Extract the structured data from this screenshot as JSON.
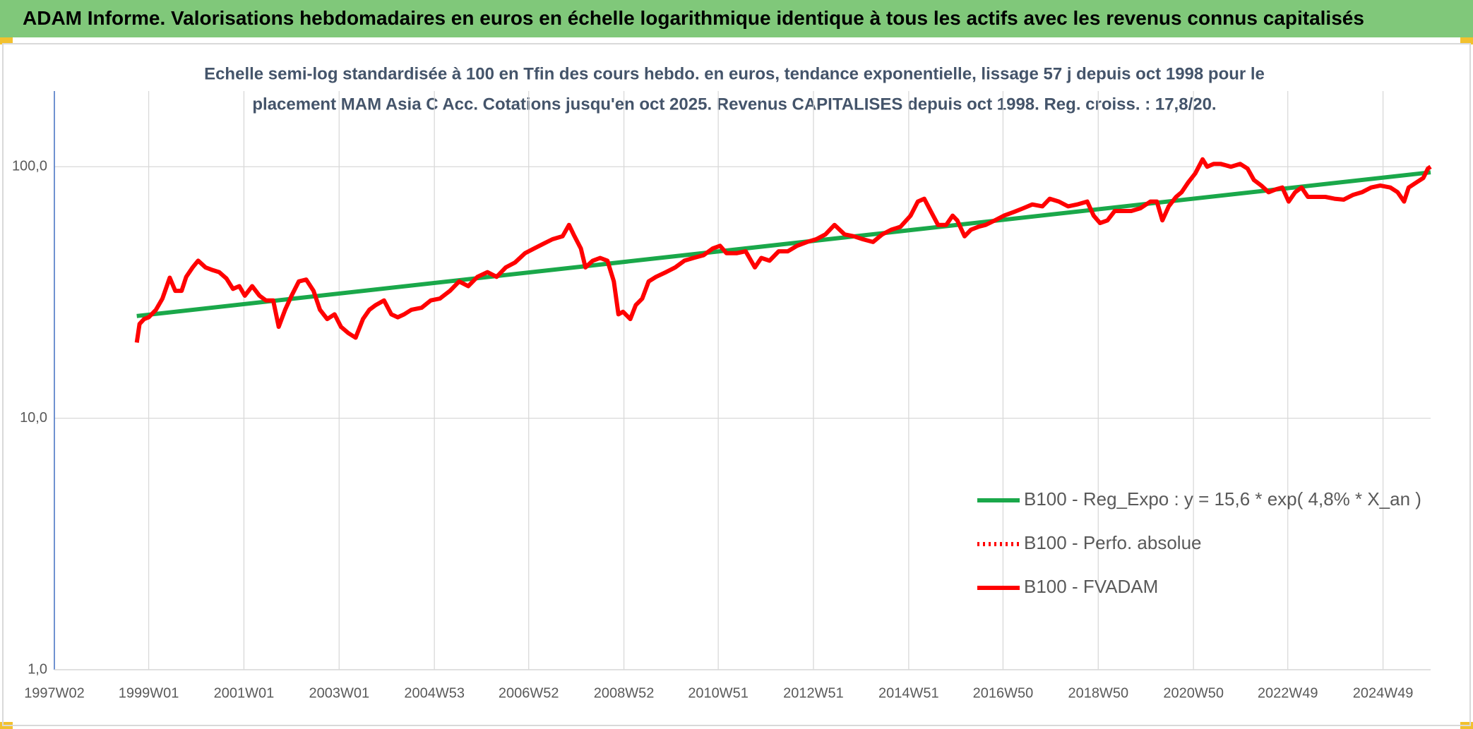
{
  "chart_data": {
    "type": "line",
    "title": "ADAM Informe. Valorisations hebdomadaires en euros en échelle logarithmique identique à tous les actifs avec les revenus connus capitalisés",
    "subtitle": [
      "Echelle semi-log standardisée à 100 en Tfin des cours hebdo. en euros, tendance exponentielle, lissage 57 j depuis oct 1998 pour le",
      "placement MAM Asia C Acc. Cotations jusqu'en oct 2025. Revenus CAPITALISES depuis oct 1998. Reg. croiss. : 17,8/20."
    ],
    "log_scale": true,
    "grid": true,
    "legend": "bottom-right",
    "ylim": [
      1,
      200
    ],
    "yticks": [
      {
        "value": 1,
        "label": "1,0"
      },
      {
        "value": 10,
        "label": "10,0"
      },
      {
        "value": 100,
        "label": "100,0"
      }
    ],
    "xlim": [
      "1997W02",
      "2025W49"
    ],
    "xticks": [
      "1997W02",
      "1999W01",
      "2001W01",
      "2003W01",
      "2004W53",
      "2006W52",
      "2008W52",
      "2010W51",
      "2012W51",
      "2014W51",
      "2016W50",
      "2018W50",
      "2020W50",
      "2022W49",
      "2024W49"
    ],
    "series": [
      {
        "name": "B100 - Reg_Expo : y = 15,6 * exp( 4,8% *  X_an )",
        "color": "#1aa84a",
        "style": "solid",
        "x": [
          "1998W40",
          "2025W49"
        ],
        "values": [
          25.5,
          95
        ]
      },
      {
        "name": "B100 - Perfo. absolue",
        "color": "#ff0000",
        "style": "dotted",
        "x": [],
        "values": []
      },
      {
        "name": "B100 - FVADAM",
        "color": "#ff0000",
        "style": "solid",
        "x": [
          "1998W40",
          "1998W43",
          "1998W48",
          "1999W01",
          "1999W09",
          "1999W16",
          "1999W24",
          "1999W30",
          "1999W37",
          "1999W42",
          "1999W49",
          "2000W03",
          "2000W11",
          "2000W19",
          "2000W26",
          "2000W34",
          "2000W41",
          "2000W48",
          "2001W02",
          "2001W10",
          "2001W18",
          "2001W25",
          "2001W33",
          "2001W39",
          "2001W46",
          "2002W01",
          "2002W09",
          "2002W17",
          "2002W25",
          "2002W32",
          "2002W40",
          "2002W48",
          "2003W03",
          "2003W11",
          "2003W19",
          "2003W27",
          "2003W34",
          "2003W41",
          "2003W50",
          "2004W06",
          "2004W13",
          "2004W20",
          "2004W28",
          "2004W39",
          "2004W49",
          "2005W07",
          "2005W18",
          "2005W28",
          "2005W38",
          "2005W48",
          "2006W07",
          "2006W17",
          "2006W27",
          "2006W37",
          "2006W48",
          "2007W06",
          "2007W16",
          "2007W26",
          "2007W37",
          "2007W44",
          "2007W49",
          "2008W05",
          "2008W10",
          "2008W18",
          "2008W26",
          "2008W34",
          "2008W41",
          "2008W46",
          "2008W51",
          "2009W07",
          "2009W13",
          "2009W20",
          "2009W27",
          "2009W35",
          "2009W46",
          "2010W04",
          "2010W14",
          "2010W24",
          "2010W35",
          "2010W45",
          "2011W01",
          "2011W08",
          "2011W19",
          "2011W29",
          "2011W39",
          "2011W46",
          "2012W03",
          "2012W13",
          "2012W23",
          "2012W33",
          "2012W44",
          "2013W02",
          "2013W12",
          "2013W22",
          "2013W33",
          "2013W43",
          "2014W01",
          "2014W12",
          "2014W22",
          "2014W32",
          "2014W42",
          "2015W01",
          "2015W09",
          "2015W16",
          "2015W23",
          "2015W31",
          "2015W40",
          "2015W47",
          "2015W52",
          "2016W08",
          "2016W15",
          "2016W23",
          "2016W31",
          "2016W41",
          "2016W51",
          "2017W10",
          "2017W20",
          "2017W30",
          "2017W41",
          "2017W49",
          "2018W07",
          "2018W17",
          "2018W27",
          "2018W38",
          "2018W45",
          "2018W52",
          "2019W08",
          "2019W16",
          "2019W24",
          "2019W34",
          "2019W44",
          "2020W03",
          "2020W10",
          "2020W16",
          "2020W23",
          "2020W31",
          "2020W37",
          "2020W44",
          "2020W52",
          "2021W08",
          "2021W13",
          "2021W20",
          "2021W28",
          "2021W39",
          "2021W49",
          "2022W05",
          "2022W12",
          "2022W20",
          "2022W28",
          "2022W36",
          "2022W43",
          "2022W50",
          "2023W05",
          "2023W12",
          "2023W19",
          "2023W27",
          "2023W38",
          "2023W48",
          "2024W06",
          "2024W16",
          "2024W26",
          "2024W36",
          "2024W46",
          "2025W05",
          "2025W13",
          "2025W20",
          "2025W25",
          "2025W33",
          "2025W41",
          "2025W46",
          "2025W49"
        ],
        "values": [
          20.0,
          23.7,
          24.8,
          25.2,
          27.0,
          29.9,
          36.2,
          32.1,
          32.1,
          36.5,
          39.8,
          42.3,
          39.8,
          38.8,
          38.1,
          35.9,
          32.7,
          33.5,
          30.7,
          33.5,
          30.7,
          29.4,
          29.4,
          23.1,
          27.0,
          30.7,
          35.0,
          35.6,
          32.1,
          27.0,
          24.8,
          25.9,
          23.1,
          21.8,
          20.9,
          24.8,
          27.0,
          28.2,
          29.4,
          25.9,
          25.2,
          25.9,
          27.0,
          27.5,
          29.4,
          29.9,
          32.1,
          35.0,
          33.5,
          36.5,
          38.1,
          36.5,
          39.8,
          41.6,
          45.3,
          47.3,
          49.4,
          51.5,
          52.9,
          58.7,
          53.8,
          47.3,
          39.8,
          42.3,
          43.4,
          42.3,
          35.0,
          25.9,
          26.5,
          24.8,
          28.2,
          29.9,
          35.0,
          36.5,
          38.1,
          39.8,
          42.3,
          43.4,
          44.5,
          47.3,
          48.5,
          45.3,
          45.3,
          46.1,
          39.8,
          43.4,
          42.3,
          46.1,
          46.1,
          48.5,
          50.2,
          51.5,
          53.8,
          58.7,
          53.8,
          52.9,
          51.5,
          50.2,
          53.8,
          56.2,
          57.7,
          63.9,
          72.7,
          74.6,
          66.7,
          58.7,
          58.7,
          63.9,
          61.2,
          52.9,
          56.2,
          57.7,
          58.7,
          61.2,
          63.9,
          66.1,
          68.4,
          70.8,
          69.6,
          74.6,
          72.7,
          69.6,
          70.8,
          72.7,
          63.9,
          59.7,
          61.2,
          66.7,
          66.7,
          66.7,
          68.4,
          72.7,
          72.7,
          61.2,
          69.6,
          75.9,
          79.2,
          86.4,
          94.1,
          107,
          100,
          102.6,
          102.6,
          100,
          102.6,
          98.3,
          88.6,
          84.2,
          79.2,
          81.3,
          82.7,
          72.7,
          79.2,
          82.7,
          75.9,
          75.9,
          75.9,
          74.6,
          74.0,
          77.2,
          79.2,
          82.7,
          84.2,
          82.7,
          79.2,
          72.7,
          82.7,
          86.4,
          90.2,
          98.3,
          100
        ]
      }
    ]
  }
}
